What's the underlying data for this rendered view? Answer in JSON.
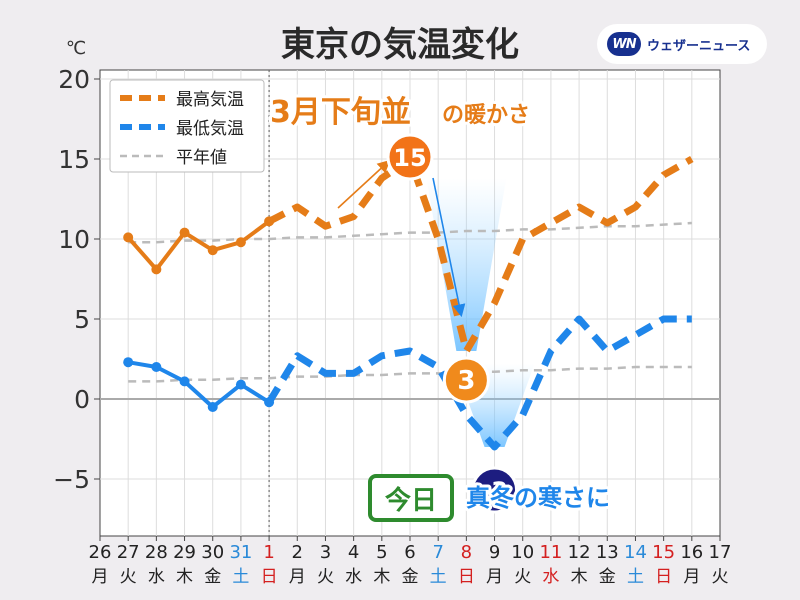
{
  "header": {
    "title": "東京の気温変化",
    "unit": "℃"
  },
  "brand": {
    "mark": "WN",
    "name": "ウェザーニュース"
  },
  "colors": {
    "max": "#e57c18",
    "min": "#1f86ea",
    "normal": "#bbbbbb",
    "today_box": "#2e8b2e",
    "holiday": "#d42020",
    "saturday": "#2a8ad8"
  },
  "annotations": {
    "warm_label": "3月下旬並",
    "warm_suffix": "の暖かさ",
    "cold_label": "真冬の寒さに",
    "today_label": "今日"
  },
  "chart_data": {
    "type": "line",
    "categories": [
      "26",
      "27",
      "28",
      "29",
      "30",
      "31",
      "1",
      "2",
      "3",
      "4",
      "5",
      "6",
      "7",
      "8",
      "9",
      "10",
      "11",
      "12",
      "13",
      "14",
      "15",
      "16",
      "17"
    ],
    "weekdays": [
      "月",
      "火",
      "水",
      "木",
      "金",
      "土",
      "日",
      "月",
      "火",
      "水",
      "木",
      "金",
      "土",
      "日",
      "月",
      "火",
      "水",
      "木",
      "金",
      "土",
      "日",
      "月",
      "火"
    ],
    "day_kind": [
      "wd",
      "wd",
      "wd",
      "wd",
      "wd",
      "sat",
      "hol",
      "wd",
      "wd",
      "wd",
      "wd",
      "wd",
      "sat",
      "hol",
      "wd",
      "wd",
      "hol",
      "wd",
      "wd",
      "sat",
      "hol",
      "wd",
      "wd"
    ],
    "today_index": 6,
    "ylim": [
      -8,
      20
    ],
    "yticks": [
      20,
      15,
      10,
      5,
      0,
      -5
    ],
    "ytick_labels": [
      "20",
      "15",
      "10",
      "5",
      "0",
      "−5"
    ],
    "series": [
      {
        "name": "最高気温",
        "key": "max",
        "values": [
          null,
          10.1,
          8.1,
          10.4,
          9.3,
          9.8,
          11.1,
          12.0,
          10.8,
          11.4,
          13.8,
          15,
          10,
          3,
          6,
          10,
          11,
          12,
          11,
          12,
          14,
          15,
          null
        ]
      },
      {
        "name": "最低気温",
        "key": "min",
        "values": [
          null,
          2.3,
          2.0,
          1.1,
          -0.5,
          0.9,
          -0.2,
          2.7,
          1.6,
          1.6,
          2.7,
          3,
          2,
          -1,
          -3,
          -1,
          3,
          5,
          3,
          4,
          5,
          5,
          null
        ]
      },
      {
        "name": "平年値",
        "key": "normal_max",
        "values": [
          null,
          9.8,
          9.8,
          9.9,
          9.9,
          10.0,
          10.0,
          10.1,
          10.1,
          10.2,
          10.3,
          10.4,
          10.4,
          10.5,
          10.5,
          10.6,
          10.6,
          10.7,
          10.8,
          10.8,
          10.9,
          11.0,
          null
        ]
      },
      {
        "name": "",
        "key": "normal_min",
        "values": [
          null,
          1.1,
          1.1,
          1.2,
          1.2,
          1.3,
          1.3,
          1.4,
          1.4,
          1.5,
          1.5,
          1.6,
          1.6,
          1.7,
          1.7,
          1.8,
          1.8,
          1.9,
          1.9,
          2.0,
          2.0,
          2.0,
          null
        ]
      }
    ],
    "highlights": [
      {
        "series": "max",
        "index": 11,
        "label": "15"
      },
      {
        "series": "max",
        "index": 13,
        "label": "3"
      },
      {
        "series": "min",
        "index": 14,
        "label": "-3"
      }
    ],
    "legend": {
      "placement": "top-left",
      "entries": [
        "最高気温",
        "最低気温",
        "平年値"
      ]
    },
    "grid": true
  }
}
